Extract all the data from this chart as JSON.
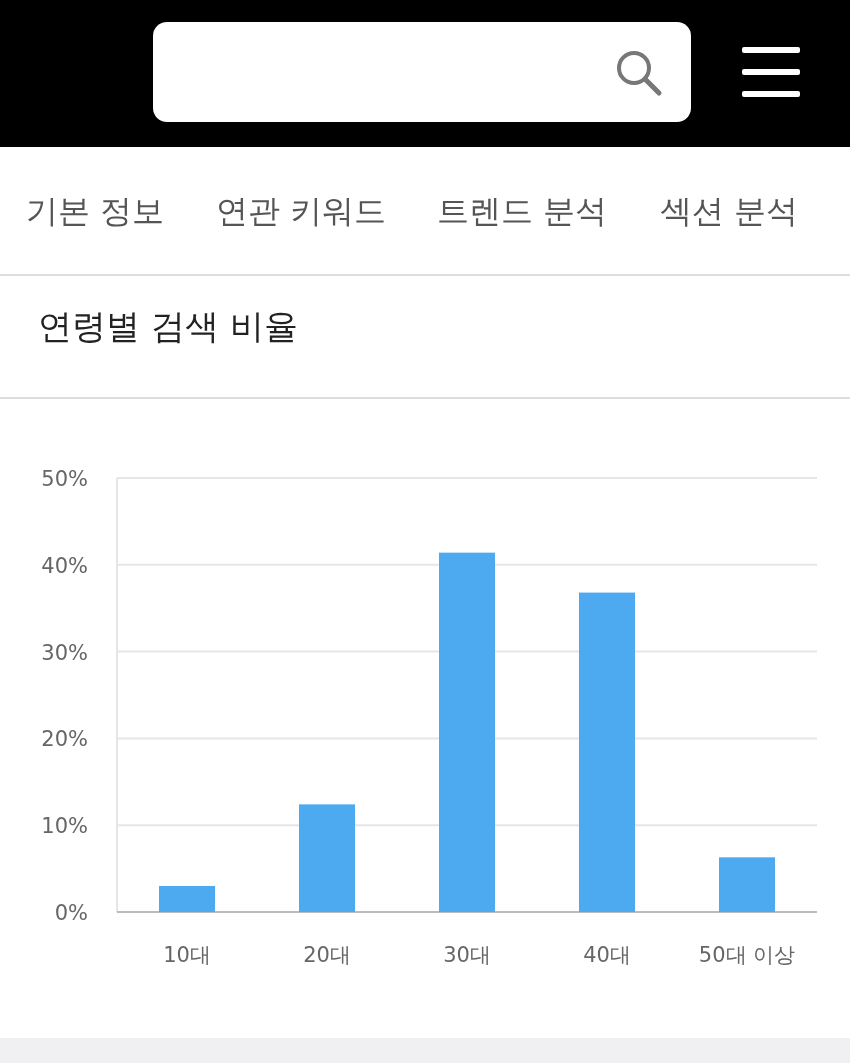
{
  "chart_data": {
    "type": "bar",
    "title": "연령별 검색 비율",
    "annotations": [
      "기본 정보",
      "연관 키워드",
      "트렌드 분석",
      "섹션 분석"
    ],
    "categories": [
      "10대",
      "20대",
      "30대",
      "40대",
      "50대 이상"
    ],
    "values": [
      3.0,
      12.4,
      41.4,
      36.8,
      6.3
    ],
    "color": "#4da9f0",
    "ylim": [
      0,
      50
    ],
    "yticks": [
      {
        "value": 0,
        "label": "0%"
      },
      {
        "value": 10,
        "label": "10%"
      },
      {
        "value": 20,
        "label": "20%"
      },
      {
        "value": 30,
        "label": "30%"
      },
      {
        "value": 40,
        "label": "40%"
      },
      {
        "value": 50,
        "label": "50%"
      }
    ],
    "grid": "y"
  }
}
